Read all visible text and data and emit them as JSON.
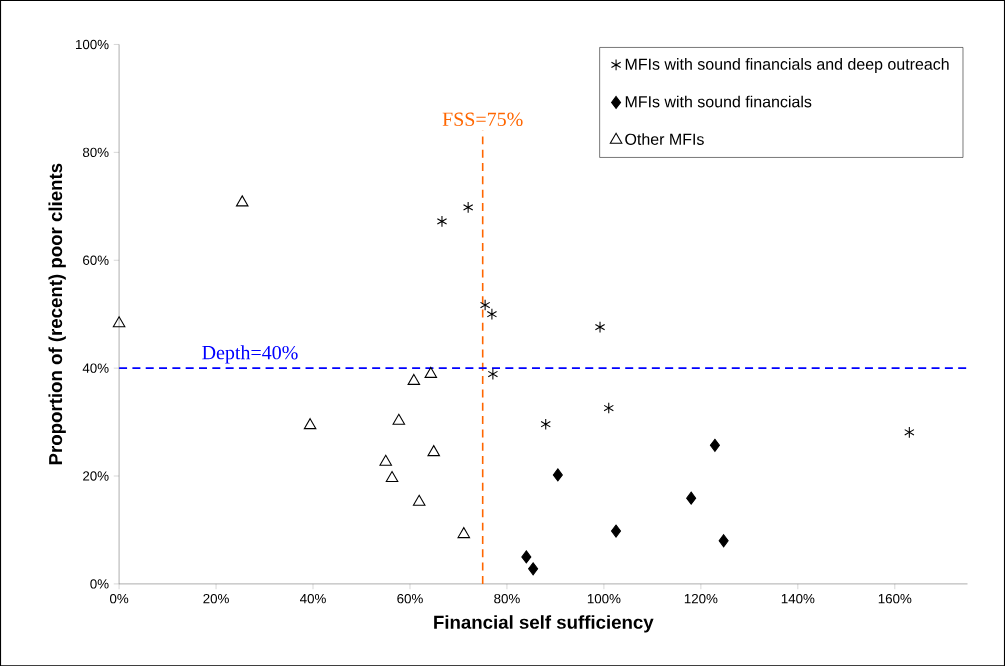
{
  "chart_data": {
    "type": "scatter",
    "xlabel": "Financial self sufficiency",
    "ylabel": "Proportion of (recent) poor clients",
    "xlim": [
      0,
      175
    ],
    "xticks": [
      {
        "value": 0,
        "label": "0%"
      },
      {
        "value": 20,
        "label": "20%"
      },
      {
        "value": 40,
        "label": "40%"
      },
      {
        "value": 60,
        "label": "60%"
      },
      {
        "value": 80,
        "label": "80%"
      },
      {
        "value": 100,
        "label": "100%"
      },
      {
        "value": 120,
        "label": "120%"
      },
      {
        "value": 140,
        "label": "140%"
      },
      {
        "value": 160,
        "label": "160%"
      }
    ],
    "ylim": [
      0,
      100
    ],
    "yticks": [
      {
        "value": 0,
        "label": "0%"
      },
      {
        "value": 20,
        "label": "20%"
      },
      {
        "value": 40,
        "label": "40%"
      },
      {
        "value": 60,
        "label": "60%"
      },
      {
        "value": 80,
        "label": "80%"
      },
      {
        "value": 100,
        "label": "100%"
      }
    ],
    "grid": false,
    "legend": "top right",
    "series": [
      {
        "name": "MFIs with sound financials and deep outreach",
        "color": "#000000",
        "marker": "cross",
        "x": [
          66.6,
          72,
          75.5,
          76.9,
          99.2,
          77.1,
          88,
          101,
          163
        ],
        "values": [
          67.2,
          69.8,
          51.7,
          50,
          47.6,
          38.9,
          29.6,
          32.6,
          28.1
        ]
      },
      {
        "name": "MFIs with sound financials",
        "color": "#000000",
        "marker": "diamond",
        "x": [
          84,
          85.4,
          90.5,
          102.5,
          118,
          122.9,
          124.7
        ],
        "values": [
          5,
          2.8,
          20.2,
          9.8,
          15.9,
          25.7,
          8
        ]
      },
      {
        "name": "Other MFIs",
        "color": "#000000",
        "marker": "triangle",
        "x": [
          0,
          25.4,
          39.4,
          57.7,
          55,
          56.3,
          60.8,
          64.3,
          64.9,
          61.9,
          71.1
        ],
        "values": [
          48.3,
          70.7,
          29.4,
          30.2,
          22.6,
          19.6,
          37.6,
          38.9,
          24.4,
          15.2,
          9.2
        ]
      }
    ],
    "ref_lines": [
      {
        "axis": "x",
        "value": 75,
        "label": "FSS=75%",
        "color": "#ff6600",
        "line_style": "dashed"
      },
      {
        "axis": "y",
        "value": 40,
        "label": "Depth=40%",
        "color": "#0000ff",
        "line_style": "dashed"
      }
    ]
  }
}
